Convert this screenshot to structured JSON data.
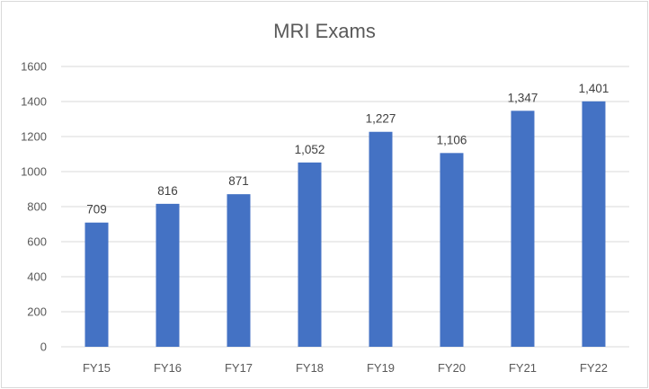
{
  "chart_data": {
    "type": "bar",
    "title": "MRI Exams",
    "categories": [
      "FY15",
      "FY16",
      "FY17",
      "FY18",
      "FY19",
      "FY20",
      "FY21",
      "FY22"
    ],
    "values": [
      709,
      816,
      871,
      1052,
      1227,
      1106,
      1347,
      1401
    ],
    "value_labels": [
      "709",
      "816",
      "871",
      "1,052",
      "1,227",
      "1,106",
      "1,347",
      "1,401"
    ],
    "ylim": [
      0,
      1600
    ],
    "yticks": [
      "0",
      "200",
      "400",
      "600",
      "800",
      "1000",
      "1200",
      "1400",
      "1600"
    ],
    "grid": true,
    "legend": "none",
    "bar_color": "#4472c4",
    "xlabel": "",
    "ylabel": ""
  }
}
